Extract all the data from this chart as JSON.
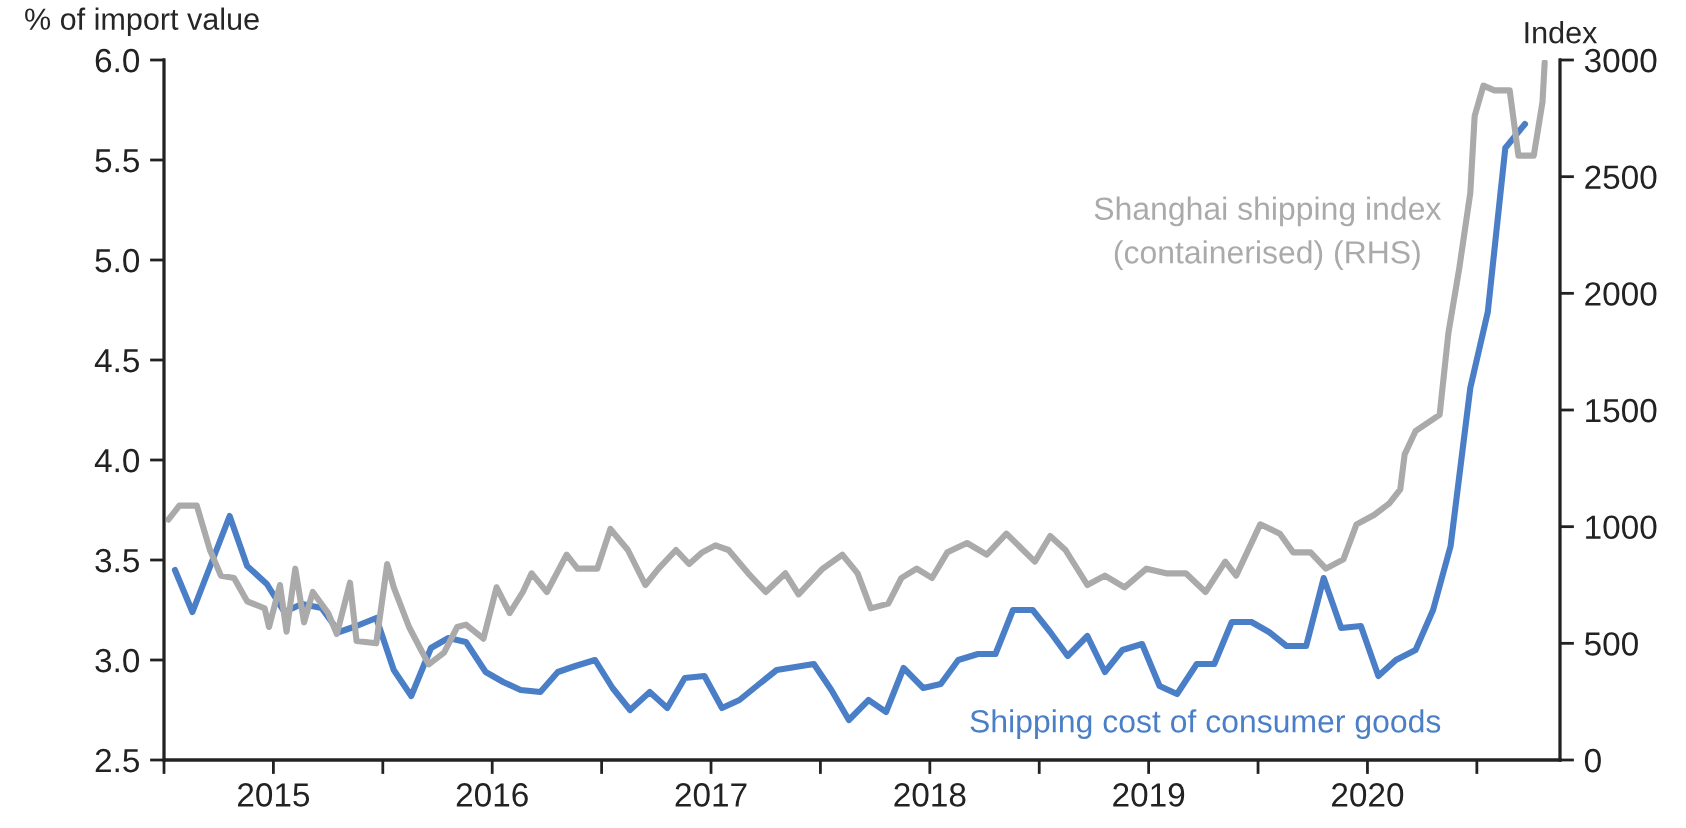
{
  "chart_data": {
    "type": "line",
    "ylabel": "% of import value",
    "y2label": "Index",
    "xlim": [
      2015.0,
      2021.38
    ],
    "xticks": [
      {
        "value": 2015,
        "label": null
      },
      {
        "value": 2015.5,
        "label": "2015"
      },
      {
        "value": 2016,
        "label": null
      },
      {
        "value": 2016.5,
        "label": "2016"
      },
      {
        "value": 2017,
        "label": null
      },
      {
        "value": 2017.5,
        "label": "2017"
      },
      {
        "value": 2018,
        "label": null
      },
      {
        "value": 2018.5,
        "label": "2018"
      },
      {
        "value": 2019,
        "label": null
      },
      {
        "value": 2019.5,
        "label": "2019"
      },
      {
        "value": 2020,
        "label": null
      },
      {
        "value": 2020.5,
        "label": "2020"
      },
      {
        "value": 2021,
        "label": null
      }
    ],
    "ylim": [
      2.5,
      6.0
    ],
    "yticks": [
      {
        "value": 2.5,
        "label": "2.5"
      },
      {
        "value": 3,
        "label": "3.0"
      },
      {
        "value": 3.5,
        "label": "3.5"
      },
      {
        "value": 4,
        "label": "4.0"
      },
      {
        "value": 4.5,
        "label": "4.5"
      },
      {
        "value": 5,
        "label": "5.0"
      },
      {
        "value": 5.5,
        "label": "5.5"
      },
      {
        "value": 6,
        "label": "6.0"
      }
    ],
    "y2lim": [
      0,
      3000
    ],
    "y2ticks": [
      0,
      500,
      1000,
      1500,
      2000,
      2500,
      3000
    ],
    "grid": false,
    "legend": false,
    "marker": "none",
    "line_style": "solid",
    "series": [
      {
        "name": "Shanghai shipping index\n(containerised) (RHS)",
        "color": "#aaaaaa",
        "axis": "y2",
        "x": [
          2015.02,
          2015.07,
          2015.15,
          2015.21,
          2015.26,
          2015.32,
          2015.38,
          2015.46,
          2015.48,
          2015.53,
          2015.56,
          2015.6,
          2015.64,
          2015.68,
          2015.75,
          2015.79,
          2015.85,
          2015.88,
          2015.97,
          2016.02,
          2016.05,
          2016.12,
          2016.17,
          2016.21,
          2016.28,
          2016.34,
          2016.38,
          2016.46,
          2016.52,
          2016.58,
          2016.64,
          2016.68,
          2016.75,
          2016.84,
          2016.89,
          2016.98,
          2017.04,
          2017.12,
          2017.2,
          2017.26,
          2017.34,
          2017.4,
          2017.46,
          2017.52,
          2017.58,
          2017.67,
          2017.75,
          2017.84,
          2017.9,
          2018.01,
          2018.1,
          2018.17,
          2018.23,
          2018.31,
          2018.37,
          2018.44,
          2018.51,
          2018.58,
          2018.67,
          2018.76,
          2018.85,
          2018.98,
          2019.05,
          2019.12,
          2019.22,
          2019.3,
          2019.39,
          2019.49,
          2019.58,
          2019.67,
          2019.76,
          2019.85,
          2019.9,
          2020.01,
          2020.1,
          2020.16,
          2020.24,
          2020.31,
          2020.39,
          2020.45,
          2020.53,
          2020.6,
          2020.65,
          2020.67,
          2020.72,
          2020.83,
          2020.87,
          2020.92,
          2020.97,
          2020.99,
          2021.03,
          2021.08,
          2021.15,
          2021.19,
          2021.26,
          2021.3,
          2021.31
        ],
        "values": [
          1030,
          1090,
          1090,
          900,
          790,
          780,
          680,
          650,
          570,
          750,
          550,
          820,
          590,
          720,
          630,
          540,
          760,
          510,
          500,
          840,
          740,
          570,
          480,
          410,
          460,
          570,
          580,
          520,
          740,
          630,
          720,
          800,
          720,
          880,
          820,
          820,
          990,
          900,
          750,
          820,
          900,
          840,
          890,
          920,
          900,
          800,
          720,
          800,
          710,
          820,
          880,
          800,
          650,
          670,
          780,
          820,
          780,
          890,
          930,
          880,
          970,
          850,
          960,
          900,
          750,
          790,
          740,
          820,
          800,
          800,
          720,
          850,
          790,
          1010,
          970,
          890,
          890,
          820,
          860,
          1010,
          1050,
          1100,
          1160,
          1310,
          1410,
          1480,
          1830,
          2110,
          2430,
          2760,
          2890,
          2870,
          2870,
          2590,
          2590,
          2820,
          2990
        ]
      },
      {
        "name": "Shipping cost of consumer goods",
        "color": "#4a7fc8",
        "x": [
          2015.05,
          2015.13,
          2015.3,
          2015.38,
          2015.47,
          2015.55,
          2015.63,
          2015.72,
          2015.8,
          2015.88,
          2015.97,
          2016.05,
          2016.13,
          2016.22,
          2016.3,
          2016.38,
          2016.47,
          2016.55,
          2016.63,
          2016.72,
          2016.8,
          2016.88,
          2016.97,
          2017.05,
          2017.13,
          2017.22,
          2017.3,
          2017.38,
          2017.47,
          2017.55,
          2017.63,
          2017.72,
          2017.8,
          2017.97,
          2018.05,
          2018.13,
          2018.22,
          2018.3,
          2018.38,
          2018.47,
          2018.55,
          2018.63,
          2018.72,
          2018.8,
          2018.88,
          2018.97,
          2019.05,
          2019.13,
          2019.22,
          2019.3,
          2019.38,
          2019.47,
          2019.55,
          2019.63,
          2019.72,
          2019.8,
          2019.88,
          2019.97,
          2020.05,
          2020.13,
          2020.22,
          2020.3,
          2020.38,
          2020.47,
          2020.55,
          2020.63,
          2020.72,
          2020.8,
          2020.88,
          2020.97,
          2021.05,
          2021.13,
          2021.22
        ],
        "values": [
          3.45,
          3.24,
          3.72,
          3.47,
          3.38,
          3.24,
          3.28,
          3.26,
          3.14,
          3.17,
          3.21,
          2.95,
          2.82,
          3.06,
          3.11,
          3.09,
          2.94,
          2.89,
          2.85,
          2.84,
          2.94,
          2.97,
          3.0,
          2.86,
          2.75,
          2.84,
          2.76,
          2.91,
          2.92,
          2.76,
          2.8,
          2.88,
          2.95,
          2.98,
          2.85,
          2.7,
          2.8,
          2.74,
          2.96,
          2.86,
          2.88,
          3.0,
          3.03,
          3.03,
          3.25,
          3.25,
          3.14,
          3.02,
          3.12,
          2.94,
          3.05,
          3.08,
          2.87,
          2.83,
          2.98,
          2.98,
          3.19,
          3.19,
          3.14,
          3.07,
          3.07,
          3.41,
          3.16,
          3.17,
          2.92,
          3.0,
          3.05,
          3.25,
          3.57,
          4.36,
          4.74,
          5.56,
          5.68
        ]
      }
    ]
  }
}
